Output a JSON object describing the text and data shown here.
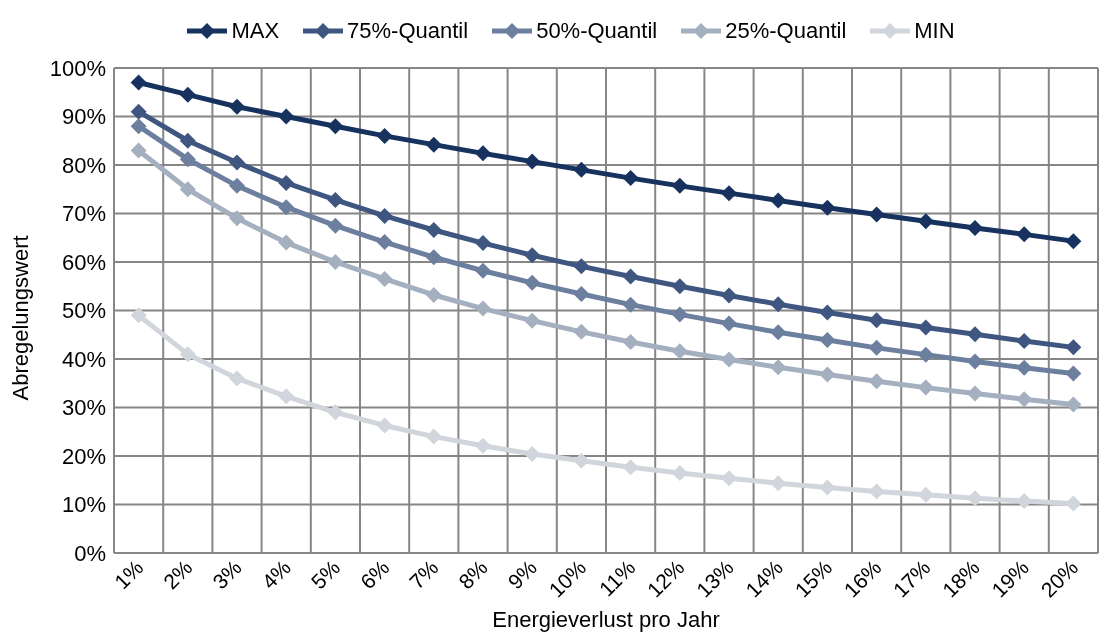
{
  "chart_data": {
    "type": "line",
    "xlabel": "Energieverlust pro Jahr",
    "ylabel": "Abregelungswert",
    "categories": [
      "1%",
      "2%",
      "3%",
      "4%",
      "5%",
      "6%",
      "7%",
      "8%",
      "9%",
      "10%",
      "11%",
      "12%",
      "13%",
      "14%",
      "15%",
      "16%",
      "17%",
      "18%",
      "19%",
      "20%"
    ],
    "series": [
      {
        "name": "MAX",
        "color": "#17325f",
        "values": [
          97,
          94.5,
          92,
          90,
          88,
          86,
          84.2,
          82.4,
          80.7,
          79,
          77.3,
          75.7,
          74.2,
          72.7,
          71.2,
          69.8,
          68.4,
          67,
          65.7,
          64.3
        ]
      },
      {
        "name": "75%-Quantil",
        "color": "#3f5680",
        "values": [
          91,
          85,
          80.5,
          76.3,
          72.8,
          69.5,
          66.6,
          63.9,
          61.4,
          59.1,
          57,
          55,
          53.1,
          51.3,
          49.6,
          48,
          46.5,
          45.1,
          43.7,
          42.4
        ]
      },
      {
        "name": "50%-Quantil",
        "color": "#6d7f9f",
        "values": [
          88,
          81.2,
          75.7,
          71.3,
          67.5,
          64.1,
          61,
          58.2,
          55.7,
          53.4,
          51.2,
          49.2,
          47.3,
          45.5,
          43.9,
          42.3,
          40.9,
          39.5,
          38.2,
          37
        ]
      },
      {
        "name": "25%-Quantil",
        "color": "#a4afc0",
        "values": [
          83,
          75,
          69,
          64,
          60,
          56.5,
          53.2,
          50.4,
          47.9,
          45.6,
          43.5,
          41.6,
          39.9,
          38.3,
          36.8,
          35.4,
          34.1,
          32.9,
          31.7,
          30.6
        ]
      },
      {
        "name": "MIN",
        "color": "#d1d5dc",
        "values": [
          49,
          41,
          36,
          32.3,
          29,
          26.3,
          24,
          22.1,
          20.4,
          19,
          17.7,
          16.5,
          15.4,
          14.4,
          13.5,
          12.7,
          12,
          11.3,
          10.7,
          10.2
        ]
      }
    ],
    "ylim": [
      0,
      100
    ],
    "yticks": [
      {
        "value": 0,
        "label": "0%"
      },
      {
        "value": 10,
        "label": "10%"
      },
      {
        "value": 20,
        "label": "20%"
      },
      {
        "value": 30,
        "label": "30%"
      },
      {
        "value": 40,
        "label": "40%"
      },
      {
        "value": 50,
        "label": "50%"
      },
      {
        "value": 60,
        "label": "60%"
      },
      {
        "value": 70,
        "label": "70%"
      },
      {
        "value": 80,
        "label": "80%"
      },
      {
        "value": 90,
        "label": "90%"
      },
      {
        "value": 100,
        "label": "100%"
      }
    ],
    "grid": true,
    "legend": "top",
    "marker": "diamond",
    "line_style": "solid"
  }
}
